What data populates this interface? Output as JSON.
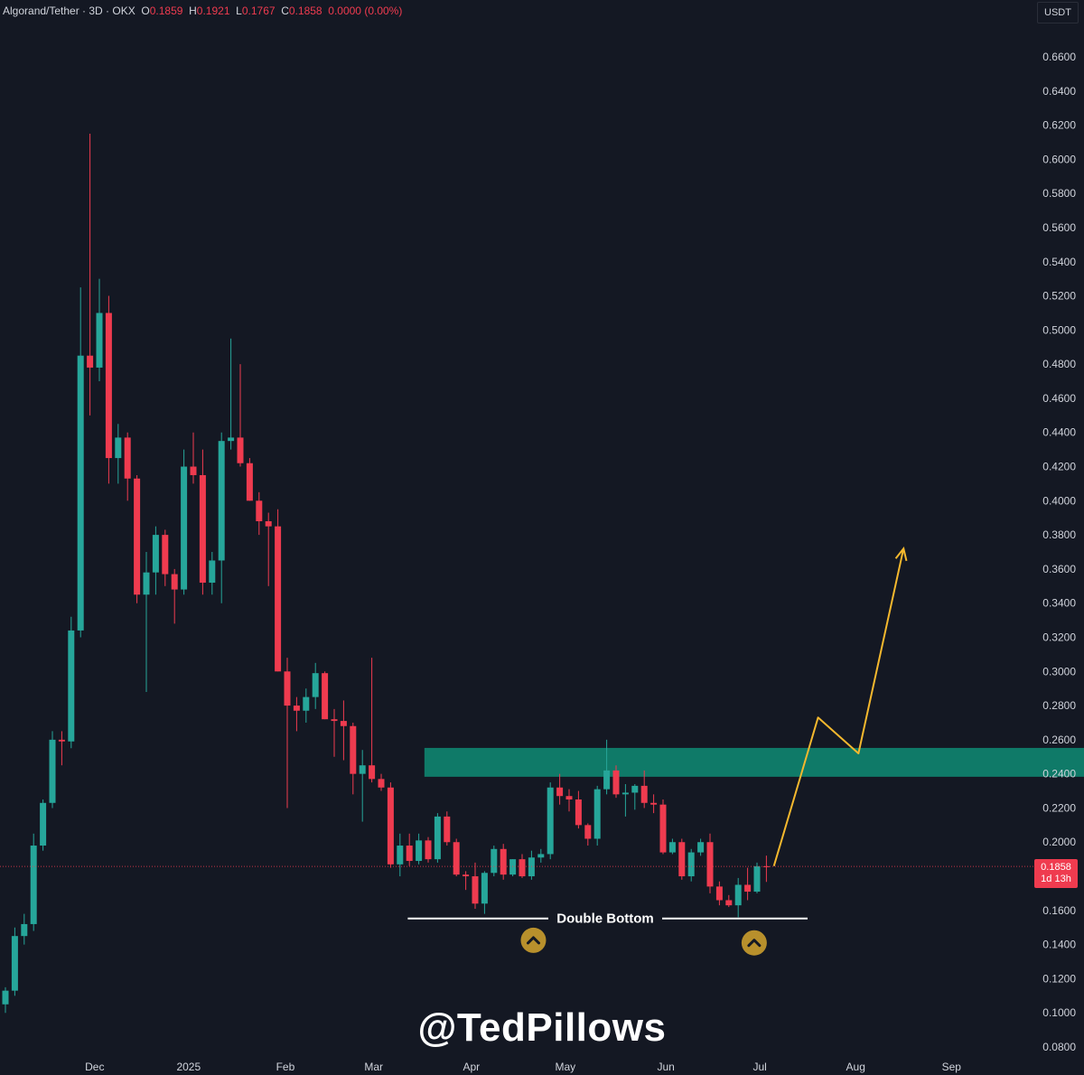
{
  "header": {
    "symbol": "Algorand/Tether · 3D · OKX",
    "o_label": "O",
    "o_value": "0.1859",
    "h_label": "H",
    "h_value": "0.1921",
    "l_label": "L",
    "l_value": "0.1767",
    "c_label": "C",
    "c_value": "0.1858",
    "change": "0.0000 (0.00%)"
  },
  "currency_badge": "USDT",
  "watermark": "@TedPillows",
  "current_price": {
    "price": "0.1858",
    "countdown": "1d 13h"
  },
  "colors": {
    "background": "#141823",
    "bull": "#26a69a",
    "bear": "#ef3b4f",
    "zone": "#0f7a68",
    "projection": "#f5b82e",
    "marker": "#b8902c"
  },
  "chart_data": {
    "type": "candlestick",
    "title": "Algorand/Tether · 3D · OKX",
    "y_axis": {
      "ylim": [
        0.08,
        0.66
      ],
      "ticks": [
        "0.6600",
        "0.6400",
        "0.6200",
        "0.6000",
        "0.5800",
        "0.5600",
        "0.5400",
        "0.5200",
        "0.5000",
        "0.4800",
        "0.4600",
        "0.4400",
        "0.4200",
        "0.4000",
        "0.3800",
        "0.3600",
        "0.3400",
        "0.3200",
        "0.3000",
        "0.2800",
        "0.2600",
        "0.2400",
        "0.2200",
        "0.2000",
        "0.1800",
        "0.1600",
        "0.1400",
        "0.1200",
        "0.1000",
        "0.0800"
      ]
    },
    "x_axis": {
      "ticks": [
        {
          "label": "Dec",
          "index": 9.5
        },
        {
          "label": "2025",
          "index": 19.5
        },
        {
          "label": "Feb",
          "index": 29.8
        },
        {
          "label": "Mar",
          "index": 39.2
        },
        {
          "label": "Apr",
          "index": 49.6
        },
        {
          "label": "May",
          "index": 59.6
        },
        {
          "label": "Jun",
          "index": 70.3
        },
        {
          "label": "Jul",
          "index": 80.3
        },
        {
          "label": "Aug",
          "index": 90.5
        },
        {
          "label": "Sep",
          "index": 100.7
        }
      ]
    },
    "candles": [
      {
        "o": 0.105,
        "h": 0.115,
        "l": 0.1,
        "c": 0.113
      },
      {
        "o": 0.113,
        "h": 0.15,
        "l": 0.11,
        "c": 0.145
      },
      {
        "o": 0.145,
        "h": 0.158,
        "l": 0.14,
        "c": 0.152
      },
      {
        "o": 0.152,
        "h": 0.205,
        "l": 0.148,
        "c": 0.198
      },
      {
        "o": 0.198,
        "h": 0.225,
        "l": 0.195,
        "c": 0.223
      },
      {
        "o": 0.223,
        "h": 0.265,
        "l": 0.22,
        "c": 0.26
      },
      {
        "o": 0.26,
        "h": 0.265,
        "l": 0.245,
        "c": 0.259
      },
      {
        "o": 0.259,
        "h": 0.332,
        "l": 0.255,
        "c": 0.324
      },
      {
        "o": 0.324,
        "h": 0.525,
        "l": 0.32,
        "c": 0.485
      },
      {
        "o": 0.485,
        "h": 0.615,
        "l": 0.45,
        "c": 0.478
      },
      {
        "o": 0.478,
        "h": 0.53,
        "l": 0.47,
        "c": 0.51
      },
      {
        "o": 0.51,
        "h": 0.52,
        "l": 0.41,
        "c": 0.425
      },
      {
        "o": 0.425,
        "h": 0.445,
        "l": 0.41,
        "c": 0.437
      },
      {
        "o": 0.437,
        "h": 0.44,
        "l": 0.4,
        "c": 0.413
      },
      {
        "o": 0.413,
        "h": 0.415,
        "l": 0.34,
        "c": 0.345
      },
      {
        "o": 0.345,
        "h": 0.37,
        "l": 0.288,
        "c": 0.358
      },
      {
        "o": 0.358,
        "h": 0.385,
        "l": 0.345,
        "c": 0.38
      },
      {
        "o": 0.38,
        "h": 0.383,
        "l": 0.35,
        "c": 0.357
      },
      {
        "o": 0.357,
        "h": 0.36,
        "l": 0.328,
        "c": 0.348
      },
      {
        "o": 0.348,
        "h": 0.43,
        "l": 0.345,
        "c": 0.42
      },
      {
        "o": 0.42,
        "h": 0.44,
        "l": 0.41,
        "c": 0.415
      },
      {
        "o": 0.415,
        "h": 0.43,
        "l": 0.345,
        "c": 0.352
      },
      {
        "o": 0.352,
        "h": 0.37,
        "l": 0.345,
        "c": 0.365
      },
      {
        "o": 0.365,
        "h": 0.44,
        "l": 0.34,
        "c": 0.435
      },
      {
        "o": 0.435,
        "h": 0.495,
        "l": 0.43,
        "c": 0.437
      },
      {
        "o": 0.437,
        "h": 0.48,
        "l": 0.42,
        "c": 0.422
      },
      {
        "o": 0.422,
        "h": 0.425,
        "l": 0.4,
        "c": 0.4
      },
      {
        "o": 0.4,
        "h": 0.405,
        "l": 0.38,
        "c": 0.388
      },
      {
        "o": 0.388,
        "h": 0.393,
        "l": 0.35,
        "c": 0.385
      },
      {
        "o": 0.385,
        "h": 0.395,
        "l": 0.3,
        "c": 0.3
      },
      {
        "o": 0.3,
        "h": 0.308,
        "l": 0.22,
        "c": 0.28
      },
      {
        "o": 0.28,
        "h": 0.285,
        "l": 0.265,
        "c": 0.277
      },
      {
        "o": 0.277,
        "h": 0.29,
        "l": 0.27,
        "c": 0.285
      },
      {
        "o": 0.285,
        "h": 0.305,
        "l": 0.278,
        "c": 0.299
      },
      {
        "o": 0.299,
        "h": 0.3,
        "l": 0.272,
        "c": 0.272
      },
      {
        "o": 0.272,
        "h": 0.278,
        "l": 0.25,
        "c": 0.271
      },
      {
        "o": 0.271,
        "h": 0.283,
        "l": 0.248,
        "c": 0.268
      },
      {
        "o": 0.268,
        "h": 0.27,
        "l": 0.228,
        "c": 0.24
      },
      {
        "o": 0.24,
        "h": 0.254,
        "l": 0.212,
        "c": 0.245
      },
      {
        "o": 0.245,
        "h": 0.308,
        "l": 0.235,
        "c": 0.237
      },
      {
        "o": 0.237,
        "h": 0.24,
        "l": 0.23,
        "c": 0.232
      },
      {
        "o": 0.232,
        "h": 0.235,
        "l": 0.185,
        "c": 0.187
      },
      {
        "o": 0.187,
        "h": 0.205,
        "l": 0.18,
        "c": 0.198
      },
      {
        "o": 0.198,
        "h": 0.205,
        "l": 0.186,
        "c": 0.189
      },
      {
        "o": 0.189,
        "h": 0.205,
        "l": 0.187,
        "c": 0.201
      },
      {
        "o": 0.201,
        "h": 0.203,
        "l": 0.188,
        "c": 0.19
      },
      {
        "o": 0.19,
        "h": 0.217,
        "l": 0.188,
        "c": 0.215
      },
      {
        "o": 0.215,
        "h": 0.218,
        "l": 0.198,
        "c": 0.2
      },
      {
        "o": 0.2,
        "h": 0.202,
        "l": 0.18,
        "c": 0.181
      },
      {
        "o": 0.181,
        "h": 0.183,
        "l": 0.172,
        "c": 0.18
      },
      {
        "o": 0.18,
        "h": 0.188,
        "l": 0.161,
        "c": 0.164
      },
      {
        "o": 0.164,
        "h": 0.183,
        "l": 0.158,
        "c": 0.182
      },
      {
        "o": 0.182,
        "h": 0.198,
        "l": 0.18,
        "c": 0.196
      },
      {
        "o": 0.196,
        "h": 0.199,
        "l": 0.178,
        "c": 0.181
      },
      {
        "o": 0.181,
        "h": 0.19,
        "l": 0.18,
        "c": 0.19
      },
      {
        "o": 0.19,
        "h": 0.193,
        "l": 0.179,
        "c": 0.18
      },
      {
        "o": 0.18,
        "h": 0.195,
        "l": 0.178,
        "c": 0.191
      },
      {
        "o": 0.191,
        "h": 0.196,
        "l": 0.188,
        "c": 0.193
      },
      {
        "o": 0.193,
        "h": 0.235,
        "l": 0.19,
        "c": 0.232
      },
      {
        "o": 0.232,
        "h": 0.24,
        "l": 0.222,
        "c": 0.227
      },
      {
        "o": 0.227,
        "h": 0.231,
        "l": 0.218,
        "c": 0.225
      },
      {
        "o": 0.225,
        "h": 0.23,
        "l": 0.208,
        "c": 0.21
      },
      {
        "o": 0.21,
        "h": 0.211,
        "l": 0.198,
        "c": 0.202
      },
      {
        "o": 0.202,
        "h": 0.233,
        "l": 0.198,
        "c": 0.231
      },
      {
        "o": 0.231,
        "h": 0.26,
        "l": 0.228,
        "c": 0.242
      },
      {
        "o": 0.242,
        "h": 0.245,
        "l": 0.226,
        "c": 0.228
      },
      {
        "o": 0.228,
        "h": 0.234,
        "l": 0.215,
        "c": 0.229
      },
      {
        "o": 0.229,
        "h": 0.234,
        "l": 0.219,
        "c": 0.233
      },
      {
        "o": 0.233,
        "h": 0.242,
        "l": 0.22,
        "c": 0.223
      },
      {
        "o": 0.223,
        "h": 0.228,
        "l": 0.217,
        "c": 0.222
      },
      {
        "o": 0.222,
        "h": 0.225,
        "l": 0.193,
        "c": 0.194
      },
      {
        "o": 0.194,
        "h": 0.202,
        "l": 0.193,
        "c": 0.2
      },
      {
        "o": 0.2,
        "h": 0.202,
        "l": 0.178,
        "c": 0.18
      },
      {
        "o": 0.18,
        "h": 0.196,
        "l": 0.177,
        "c": 0.194
      },
      {
        "o": 0.194,
        "h": 0.202,
        "l": 0.192,
        "c": 0.2
      },
      {
        "o": 0.2,
        "h": 0.205,
        "l": 0.17,
        "c": 0.174
      },
      {
        "o": 0.174,
        "h": 0.177,
        "l": 0.163,
        "c": 0.166
      },
      {
        "o": 0.166,
        "h": 0.169,
        "l": 0.162,
        "c": 0.163
      },
      {
        "o": 0.163,
        "h": 0.179,
        "l": 0.156,
        "c": 0.175
      },
      {
        "o": 0.175,
        "h": 0.185,
        "l": 0.166,
        "c": 0.171
      },
      {
        "o": 0.171,
        "h": 0.188,
        "l": 0.17,
        "c": 0.1859
      },
      {
        "o": 0.1859,
        "h": 0.1921,
        "l": 0.1767,
        "c": 0.1858
      }
    ],
    "annotations": {
      "resistance_zone": {
        "from_index": 44.6,
        "to_index": 115.6,
        "top": 0.2552,
        "bottom": 0.2383
      },
      "double_bottom_line": {
        "from_index": 56,
        "to_index": 104,
        "price": 0.1553,
        "label": "Double Bottom"
      },
      "bottom_markers": [
        {
          "index": 56.2,
          "price": 0.1425
        },
        {
          "index": 79.7,
          "price": 0.141
        }
      ],
      "projection_path": [
        {
          "index": 81.8,
          "price": 0.186
        },
        {
          "index": 86.5,
          "price": 0.273
        },
        {
          "index": 90.8,
          "price": 0.252
        },
        {
          "index": 95.6,
          "price": 0.372
        }
      ]
    }
  }
}
